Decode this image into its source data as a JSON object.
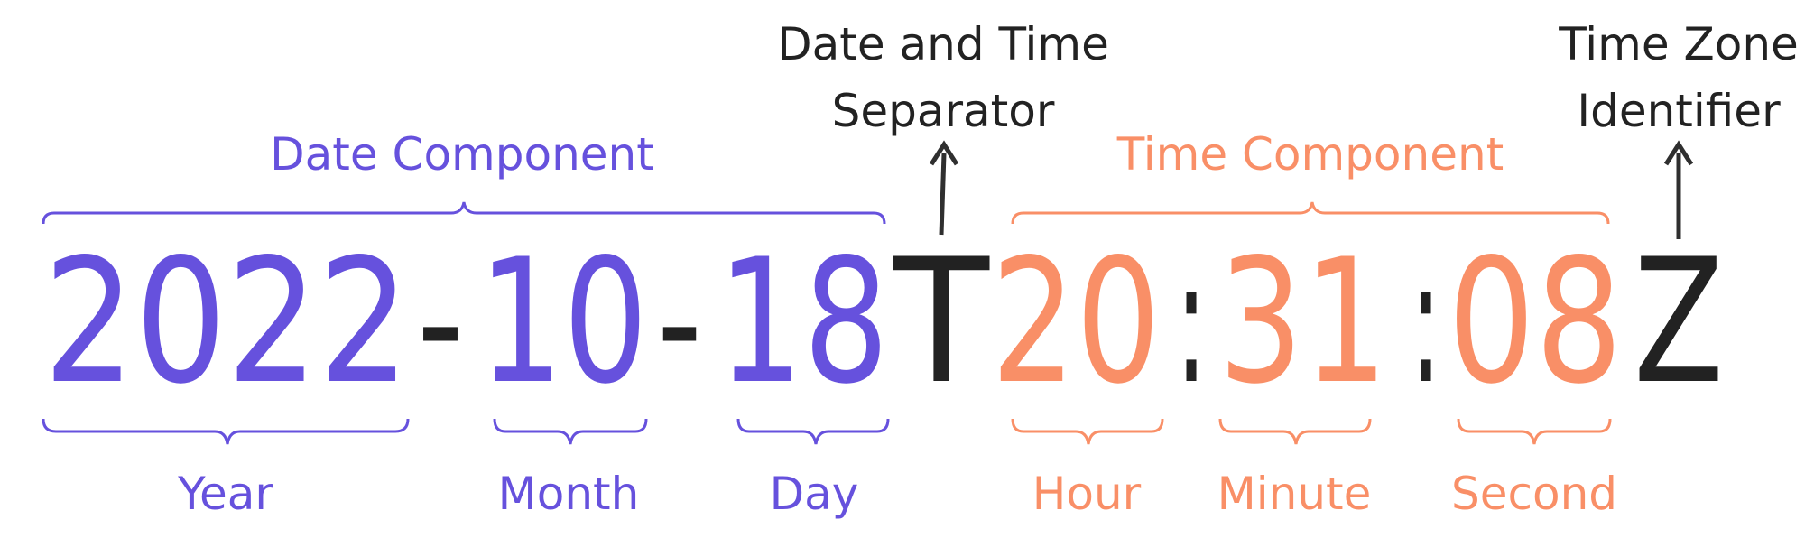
{
  "colors": {
    "date": "#6651DD",
    "time": "#F98F67",
    "ink": "#222222",
    "arrow": "#2F2F2F"
  },
  "timestamp": {
    "year": "2022",
    "sep1": "-",
    "month": "10",
    "sep2": "-",
    "day": "18",
    "t": "T",
    "hour": "20",
    "colon1": ":",
    "minute": "31",
    "colon2": ":",
    "second": "08",
    "z": "Z"
  },
  "labels": {
    "date_component": "Date Component",
    "time_component": "Time Component",
    "separator_line1": "Date and Time",
    "separator_line2": "Separator",
    "zone_line1": "Time Zone",
    "zone_line2": "Identifier",
    "year": "Year",
    "month": "Month",
    "day": "Day",
    "hour": "Hour",
    "minute": "Minute",
    "second": "Second"
  }
}
